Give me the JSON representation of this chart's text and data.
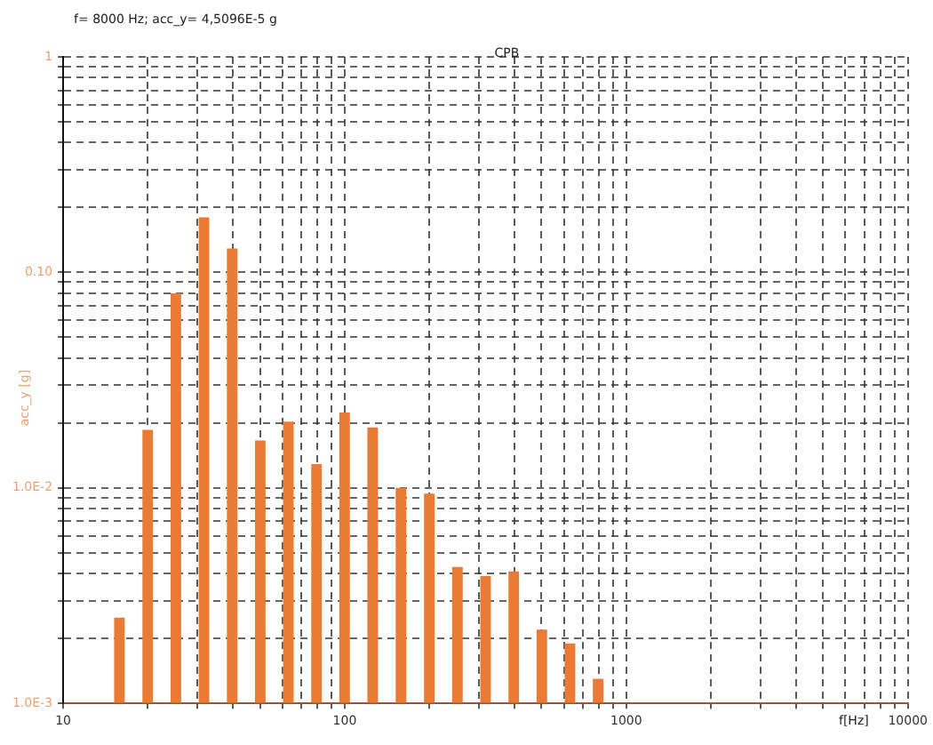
{
  "chart_data": {
    "type": "histogram",
    "title": "CPB",
    "xlabel": "f[Hz]",
    "ylabel": "acc_y [g]",
    "annotations": [
      "f= 8000 Hz; acc_y= 4,5096E-5 g"
    ],
    "bins": [
      14.1,
      17.8,
      22.4,
      28.2,
      35.5,
      44.7,
      56.2,
      70.8,
      89.1,
      112,
      141,
      178,
      224,
      282,
      355,
      447,
      562,
      708,
      891
    ],
    "values": [
      0.0025,
      0.0186,
      0.08,
      0.18,
      0.129,
      0.0166,
      0.0203,
      0.0129,
      0.0224,
      0.0191,
      0.01,
      0.0094,
      0.0043,
      0.0039,
      0.0041,
      0.0022,
      0.0019,
      0.0013
    ],
    "color": "#ea7a34",
    "log": "xy",
    "grid": true,
    "xlim": [
      10,
      10000
    ],
    "xticks": [
      10,
      {
        "value": 20,
        "label": null
      },
      {
        "value": 30,
        "label": null
      },
      {
        "value": 40,
        "label": null
      },
      {
        "value": 50,
        "label": null
      },
      {
        "value": 60,
        "label": null
      },
      {
        "value": 70,
        "label": null
      },
      {
        "value": 80,
        "label": null
      },
      {
        "value": 90,
        "label": null
      },
      100,
      {
        "value": 200,
        "label": null
      },
      {
        "value": 300,
        "label": null
      },
      {
        "value": 400,
        "label": null
      },
      {
        "value": 500,
        "label": null
      },
      {
        "value": 600,
        "label": null
      },
      {
        "value": 700,
        "label": null
      },
      {
        "value": 800,
        "label": null
      },
      {
        "value": 900,
        "label": null
      },
      1000,
      {
        "value": 2000,
        "label": null
      },
      {
        "value": 3000,
        "label": null
      },
      {
        "value": 4000,
        "label": null
      },
      {
        "value": 5000,
        "label": null
      },
      {
        "value": 6000,
        "label": null
      },
      {
        "value": 7000,
        "label": null
      },
      {
        "value": 8000,
        "label": null
      },
      {
        "value": 9000,
        "label": null
      },
      10000
    ],
    "ylim": [
      0.001,
      1
    ],
    "yticks": [
      {
        "value": 0.001,
        "label": "1.0E-3"
      },
      {
        "value": 0.002,
        "label": null
      },
      {
        "value": 0.003,
        "label": null
      },
      {
        "value": 0.004,
        "label": null
      },
      {
        "value": 0.005,
        "label": null
      },
      {
        "value": 0.006,
        "label": null
      },
      {
        "value": 0.007,
        "label": null
      },
      {
        "value": 0.008,
        "label": null
      },
      {
        "value": 0.009,
        "label": null
      },
      {
        "value": 0.01,
        "label": "1.0E-2"
      },
      {
        "value": 0.02,
        "label": null
      },
      {
        "value": 0.03,
        "label": null
      },
      {
        "value": 0.04,
        "label": null
      },
      {
        "value": 0.05,
        "label": null
      },
      {
        "value": 0.06,
        "label": null
      },
      {
        "value": 0.07,
        "label": null
      },
      {
        "value": 0.08,
        "label": null
      },
      {
        "value": 0.09,
        "label": null
      },
      {
        "value": 0.1,
        "label": "0.10"
      },
      {
        "value": 0.2,
        "label": null
      },
      {
        "value": 0.3,
        "label": null
      },
      {
        "value": 0.4,
        "label": null
      },
      {
        "value": 0.5,
        "label": null
      },
      {
        "value": 0.6,
        "label": null
      },
      {
        "value": 0.7,
        "label": null
      },
      {
        "value": 0.8,
        "label": null
      },
      {
        "value": 0.9,
        "label": null
      },
      1
    ]
  }
}
